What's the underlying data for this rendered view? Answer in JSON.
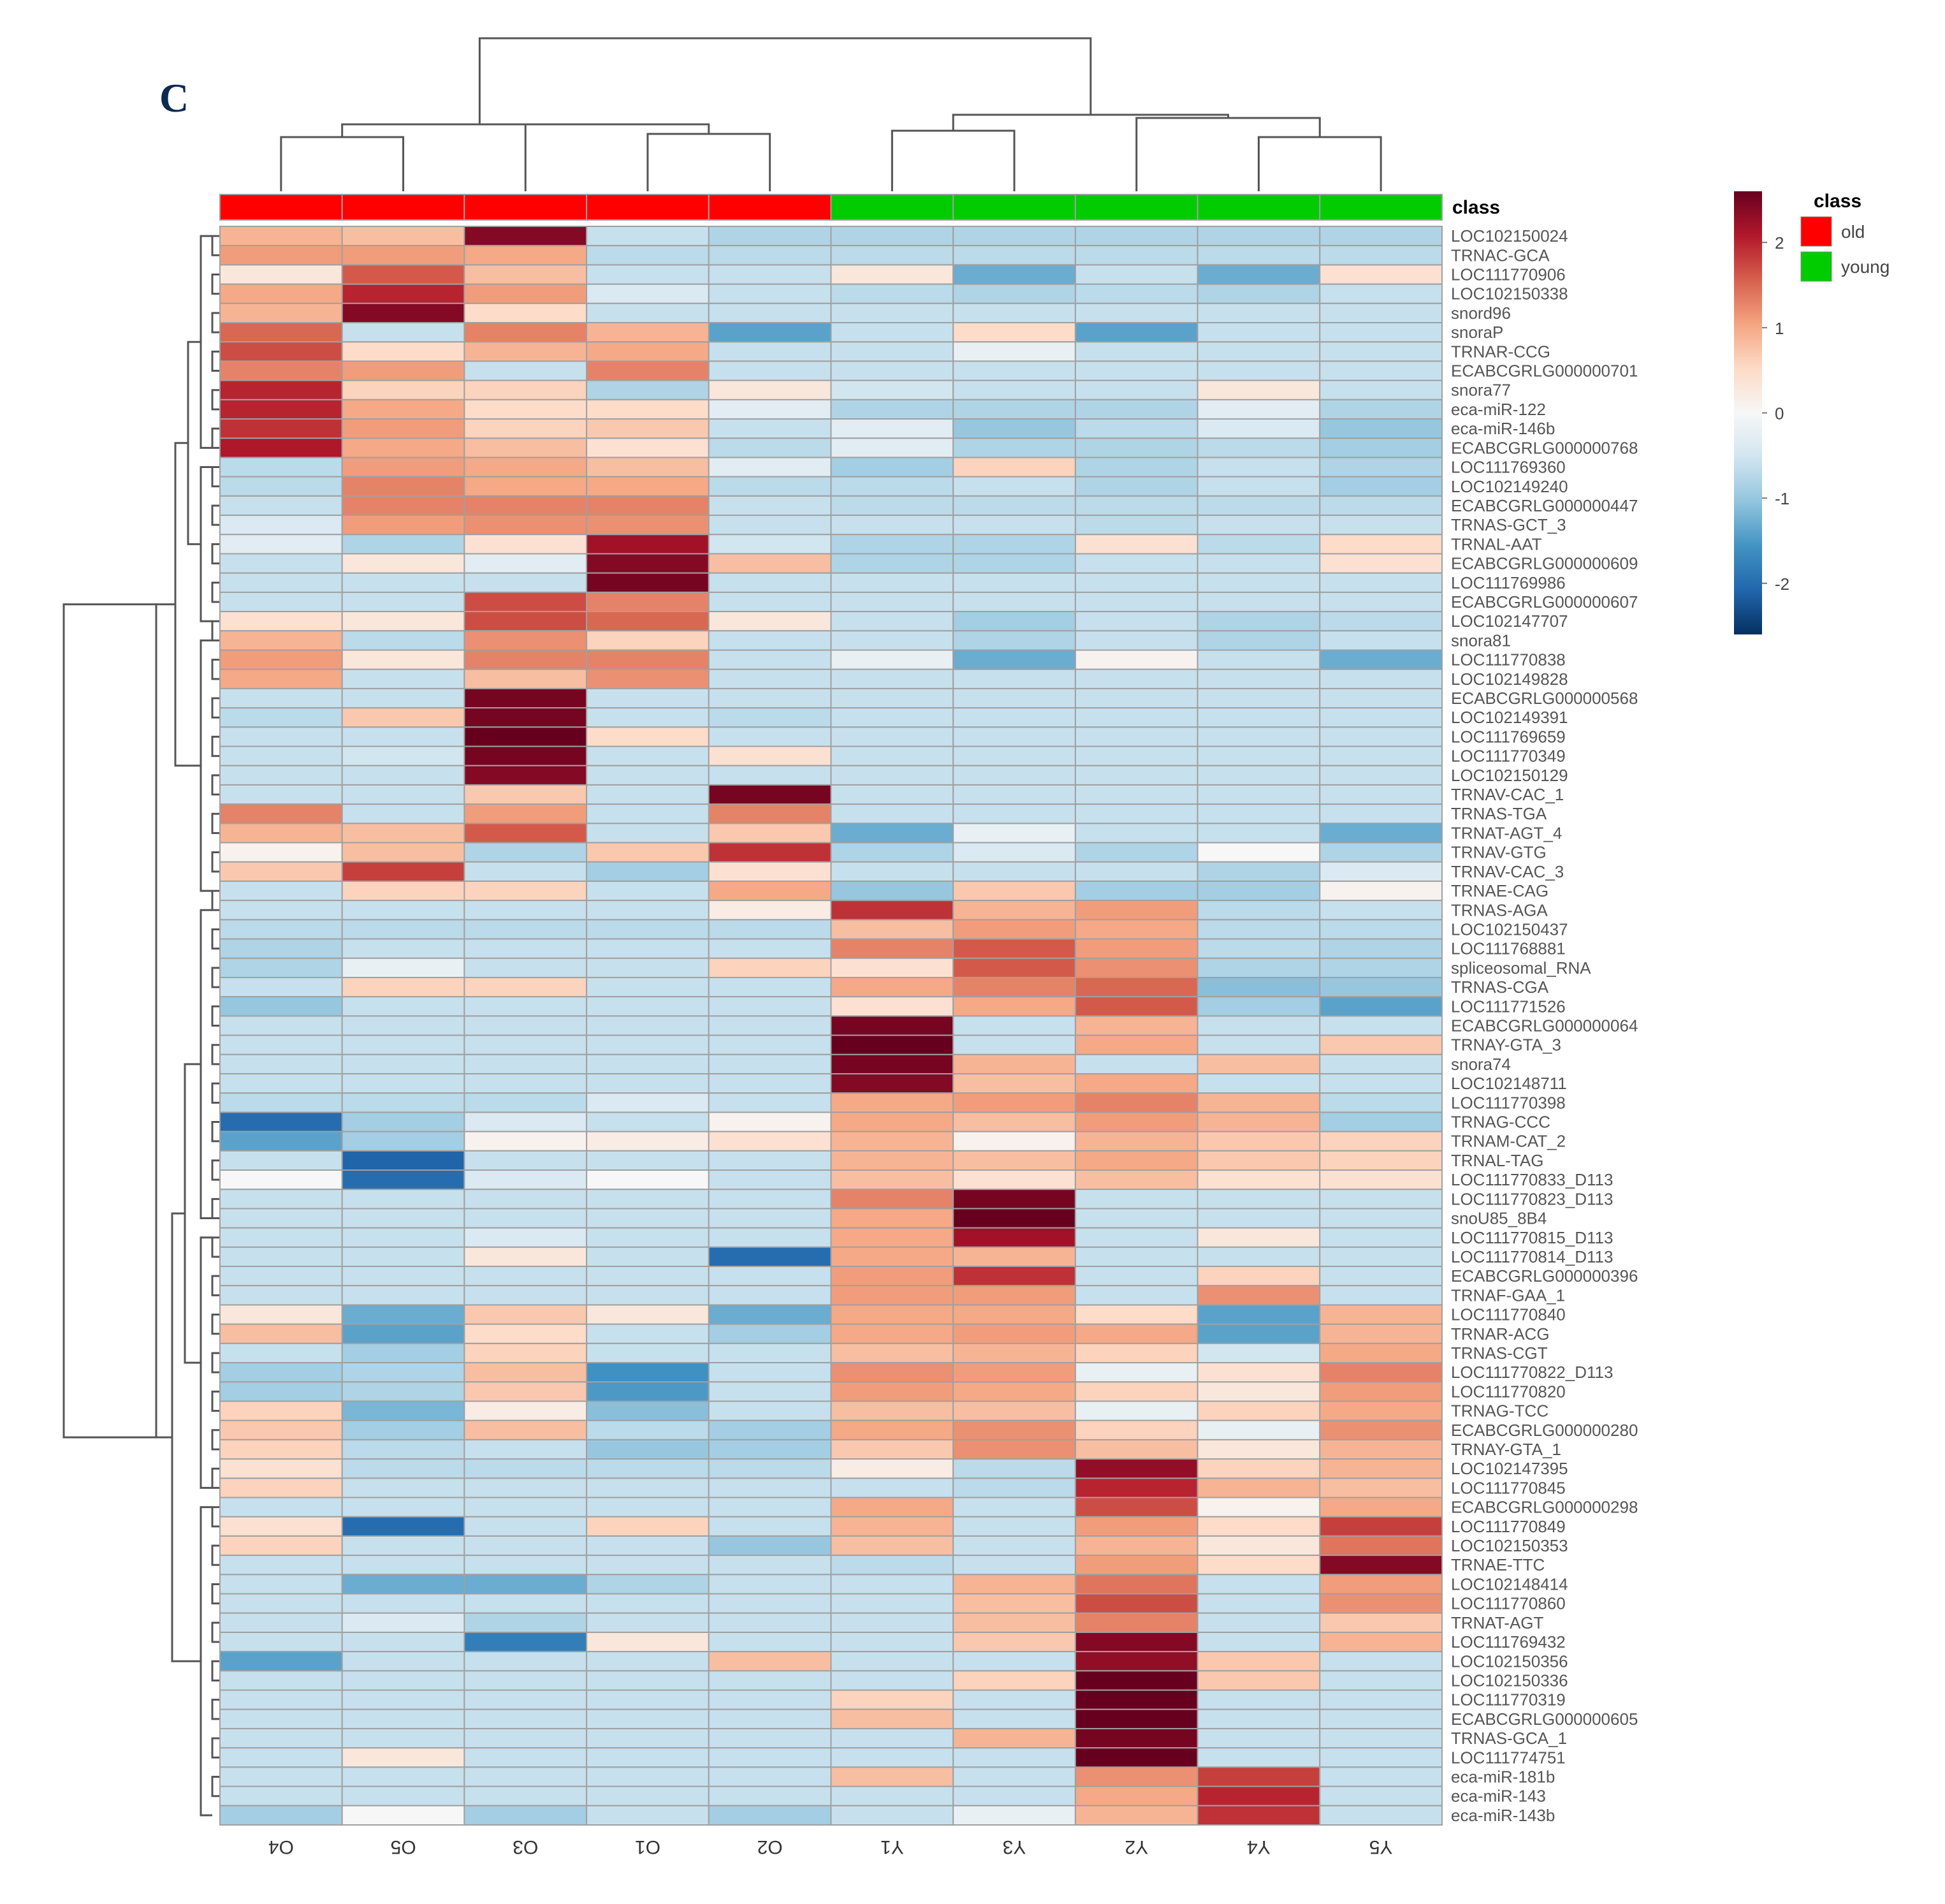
{
  "panel_label": "C",
  "chart_data": {
    "type": "heatmap",
    "title": "",
    "annotation_title": "class",
    "columns": [
      "O4",
      "O5",
      "O3",
      "O1",
      "O2",
      "Y1",
      "Y3",
      "Y2",
      "Y4",
      "Y5"
    ],
    "column_class": [
      "old",
      "old",
      "old",
      "old",
      "old",
      "young",
      "young",
      "young",
      "young",
      "young"
    ],
    "classes": [
      {
        "name": "old",
        "color": "#ff0000"
      },
      {
        "name": "young",
        "color": "#00cc00"
      }
    ],
    "color_scale": {
      "ticks": [
        2,
        1,
        0,
        -1,
        -2
      ],
      "range": [
        -2.6,
        2.6
      ],
      "stops": [
        "#053061",
        "#2166ac",
        "#4393c3",
        "#92c5de",
        "#d1e5f0",
        "#f7f7f7",
        "#fddbc7",
        "#f4a582",
        "#d6604d",
        "#b2182b",
        "#67001f"
      ]
    },
    "row_labels": [
      "LOC102150024",
      "TRNAC-GCA",
      "LOC111770906",
      "LOC102150338",
      "snord96",
      "snoraP",
      "TRNAR-CCG",
      "ECABCGRLG000000701",
      "snora77",
      "eca-miR-122",
      "eca-miR-146b",
      "ECABCGRLG000000768",
      "LOC111769360",
      "LOC102149240",
      "ECABCGRLG000000447",
      "TRNAS-GCT_3",
      "TRNAL-AAT",
      "ECABCGRLG000000609",
      "LOC111769986",
      "ECABCGRLG000000607",
      "LOC102147707",
      "snora81",
      "LOC111770838",
      "LOC102149828",
      "ECABCGRLG000000568",
      "LOC102149391",
      "LOC111769659",
      "LOC111770349",
      "LOC102150129",
      "TRNAV-CAC_1",
      "TRNAS-TGA",
      "TRNAT-AGT_4",
      "TRNAV-GTG",
      "TRNAV-CAC_3",
      "TRNAE-CAG",
      "TRNAS-AGA",
      "LOC102150437",
      "LOC111768881",
      "spliceosomal_RNA",
      "TRNAS-CGA",
      "LOC111771526",
      "ECABCGRLG000000064",
      "TRNAY-GTA_3",
      "snora74",
      "LOC102148711",
      "LOC111770398",
      "TRNAG-CCC",
      "TRNAM-CAT_2",
      "TRNAL-TAG",
      "LOC111770833_D113",
      "LOC111770823_D113",
      "snoU85_8B4",
      "LOC111770815_D113",
      "LOC111770814_D113",
      "ECABCGRLG000000396",
      "TRNAF-GAA_1",
      "LOC111770840",
      "TRNAR-ACG",
      "TRNAS-CGT",
      "LOC111770822_D113",
      "LOC111770820",
      "TRNAG-TCC",
      "ECABCGRLG000000280",
      "TRNAY-GTA_1",
      "LOC102147395",
      "LOC111770845",
      "ECABCGRLG000000298",
      "LOC111770849",
      "LOC102150353",
      "TRNAE-TTC",
      "LOC102148414",
      "LOC111770860",
      "TRNAT-AGT",
      "LOC111769432",
      "LOC102150356",
      "LOC102150336",
      "LOC111770319",
      "ECABCGRLG000000605",
      "TRNAS-GCA_1",
      "LOC111774751",
      "eca-miR-181b",
      "eca-miR-143",
      "eca-miR-143b"
    ],
    "values": [
      [
        0.9,
        0.8,
        2.4,
        -0.6,
        -0.8,
        -0.8,
        -0.8,
        -0.8,
        -0.8,
        -0.8
      ],
      [
        1.1,
        1.1,
        1.0,
        -0.7,
        -0.7,
        -0.7,
        -0.7,
        -0.7,
        -0.7,
        -0.7
      ],
      [
        0.3,
        1.6,
        0.8,
        -0.6,
        -0.6,
        0.3,
        -1.3,
        -0.6,
        -1.3,
        0.4
      ],
      [
        1.0,
        2.0,
        1.1,
        -0.4,
        -0.6,
        -0.7,
        -0.8,
        -0.7,
        -0.8,
        -0.6
      ],
      [
        0.9,
        2.4,
        0.5,
        -0.6,
        -0.6,
        -0.6,
        -0.6,
        -0.6,
        -0.6,
        -0.6
      ],
      [
        1.5,
        -0.6,
        1.3,
        0.9,
        -1.4,
        -0.6,
        0.5,
        -1.4,
        -0.6,
        -0.6
      ],
      [
        1.7,
        0.5,
        0.9,
        1.0,
        -0.6,
        -0.6,
        -0.2,
        -0.6,
        -0.6,
        -0.6
      ],
      [
        1.3,
        1.1,
        -0.6,
        1.3,
        -0.6,
        -0.6,
        -0.6,
        -0.6,
        -0.6,
        -0.6
      ],
      [
        2.0,
        0.6,
        0.6,
        -0.8,
        0.3,
        -0.5,
        -0.6,
        -0.6,
        0.3,
        -0.6
      ],
      [
        2.0,
        1.0,
        0.5,
        0.5,
        -0.3,
        -0.8,
        -0.8,
        -0.8,
        -0.3,
        -0.8
      ],
      [
        1.9,
        1.1,
        0.6,
        0.7,
        -0.6,
        -0.3,
        -1.0,
        -0.7,
        -0.4,
        -1.0
      ],
      [
        2.1,
        1.0,
        0.8,
        0.4,
        -0.7,
        -0.3,
        -0.8,
        -0.8,
        -0.7,
        -0.9
      ],
      [
        -0.7,
        1.1,
        1.0,
        0.8,
        -0.3,
        -0.9,
        0.6,
        -0.8,
        -0.6,
        -0.8
      ],
      [
        -0.7,
        1.3,
        1.0,
        1.0,
        -0.7,
        -0.7,
        -0.6,
        -0.8,
        -0.6,
        -0.9
      ],
      [
        -0.6,
        1.3,
        1.3,
        1.3,
        -0.6,
        -0.7,
        -0.7,
        -0.7,
        -0.7,
        -0.7
      ],
      [
        -0.4,
        1.1,
        1.2,
        1.2,
        -0.6,
        -0.6,
        -0.6,
        -0.7,
        -0.6,
        -0.6
      ],
      [
        -0.3,
        -0.8,
        0.4,
        2.2,
        -0.5,
        -0.8,
        -0.8,
        0.4,
        -0.7,
        0.5
      ],
      [
        -0.6,
        0.3,
        -0.3,
        2.4,
        0.8,
        -0.8,
        -0.8,
        -0.6,
        -0.6,
        0.4
      ],
      [
        -0.6,
        -0.6,
        -0.6,
        2.5,
        -0.6,
        -0.6,
        -0.6,
        -0.6,
        -0.6,
        -0.6
      ],
      [
        -0.6,
        -0.6,
        1.7,
        1.3,
        -0.6,
        -0.6,
        -0.6,
        -0.6,
        -0.6,
        -0.6
      ],
      [
        0.4,
        0.3,
        1.7,
        1.5,
        0.3,
        -0.6,
        -0.9,
        -0.6,
        -0.8,
        -0.7
      ],
      [
        0.9,
        -0.7,
        1.2,
        0.6,
        -0.6,
        -0.6,
        -0.8,
        -0.6,
        -0.8,
        -0.6
      ],
      [
        1.1,
        0.3,
        1.3,
        1.3,
        -0.6,
        -0.2,
        -1.3,
        0.1,
        -0.6,
        -1.3
      ],
      [
        1.0,
        -0.6,
        0.8,
        1.2,
        -0.6,
        -0.6,
        -0.6,
        -0.6,
        -0.6,
        -0.6
      ],
      [
        -0.6,
        -0.6,
        2.5,
        -0.6,
        -0.6,
        -0.6,
        -0.6,
        -0.6,
        -0.6,
        -0.6
      ],
      [
        -0.7,
        0.7,
        2.5,
        -0.6,
        -0.7,
        -0.6,
        -0.6,
        -0.6,
        -0.6,
        -0.6
      ],
      [
        -0.6,
        -0.6,
        2.6,
        0.5,
        -0.6,
        -0.6,
        -0.6,
        -0.6,
        -0.6,
        -0.6
      ],
      [
        -0.6,
        -0.5,
        2.5,
        -0.6,
        0.4,
        -0.6,
        -0.6,
        -0.6,
        -0.6,
        -0.6
      ],
      [
        -0.6,
        -0.6,
        2.4,
        -0.6,
        -0.6,
        -0.6,
        -0.6,
        -0.6,
        -0.6,
        -0.6
      ],
      [
        -0.6,
        -0.6,
        0.7,
        -0.6,
        2.5,
        -0.6,
        -0.6,
        -0.6,
        -0.6,
        -0.6
      ],
      [
        1.3,
        -0.6,
        1.1,
        -0.6,
        1.3,
        -0.6,
        -0.6,
        -0.6,
        -0.6,
        -0.6
      ],
      [
        0.9,
        0.8,
        1.6,
        -0.6,
        0.7,
        -1.3,
        -0.2,
        -0.6,
        -0.6,
        -1.3
      ],
      [
        0.1,
        0.8,
        -0.8,
        0.7,
        1.9,
        -0.8,
        -0.4,
        -0.8,
        0.0,
        -0.8
      ],
      [
        0.7,
        1.8,
        -0.6,
        -0.9,
        0.4,
        -0.6,
        -0.6,
        -0.6,
        -0.8,
        -0.4
      ],
      [
        -0.6,
        0.6,
        0.6,
        -0.6,
        1.0,
        -1.0,
        0.7,
        -0.9,
        -0.9,
        0.1
      ],
      [
        -0.6,
        -0.6,
        -0.6,
        -0.6,
        0.2,
        1.9,
        0.9,
        1.1,
        -0.7,
        -0.6
      ],
      [
        -0.7,
        -0.7,
        -0.7,
        -0.7,
        -0.7,
        0.8,
        1.1,
        1.0,
        -0.7,
        -0.7
      ],
      [
        -0.8,
        -0.6,
        -0.6,
        -0.6,
        -0.6,
        1.3,
        1.6,
        1.1,
        -0.7,
        -0.8
      ],
      [
        -0.8,
        -0.2,
        -0.6,
        -0.6,
        0.6,
        0.4,
        1.6,
        1.2,
        -0.8,
        -0.8
      ],
      [
        -0.6,
        0.6,
        0.6,
        -0.6,
        -0.6,
        1.0,
        1.3,
        1.5,
        -1.1,
        -1.0
      ],
      [
        -1.0,
        -0.6,
        -0.6,
        -0.6,
        -0.6,
        0.4,
        1.0,
        1.6,
        -0.9,
        -1.4
      ],
      [
        -0.6,
        -0.6,
        -0.6,
        -0.6,
        -0.6,
        2.5,
        -0.6,
        0.9,
        -0.6,
        -0.6
      ],
      [
        -0.6,
        -0.6,
        -0.6,
        -0.6,
        -0.6,
        2.6,
        -0.6,
        1.0,
        -0.6,
        0.7
      ],
      [
        -0.6,
        -0.6,
        -0.6,
        -0.6,
        -0.6,
        2.5,
        0.9,
        -0.6,
        0.8,
        -0.6
      ],
      [
        -0.6,
        -0.6,
        -0.6,
        -0.6,
        -0.6,
        2.4,
        0.8,
        1.0,
        -0.6,
        -0.6
      ],
      [
        -0.7,
        -0.7,
        -0.7,
        -0.4,
        -0.6,
        1.0,
        1.1,
        1.3,
        0.9,
        -0.7
      ],
      [
        -2.0,
        -0.9,
        -0.4,
        -0.6,
        0.1,
        1.0,
        0.8,
        1.1,
        0.9,
        -0.9
      ],
      [
        -1.4,
        -0.9,
        0.1,
        0.2,
        0.4,
        0.9,
        0.1,
        0.9,
        0.7,
        0.6
      ],
      [
        -0.6,
        -2.1,
        -0.6,
        -0.6,
        -0.6,
        0.9,
        0.8,
        1.0,
        0.7,
        0.6
      ],
      [
        0.0,
        -2.0,
        -0.4,
        0.0,
        -0.6,
        0.8,
        0.4,
        0.8,
        0.4,
        0.4
      ],
      [
        -0.6,
        -0.6,
        -0.6,
        -0.6,
        -0.6,
        1.3,
        2.5,
        -0.6,
        -0.6,
        -0.6
      ],
      [
        -0.6,
        -0.6,
        -0.6,
        -0.6,
        -0.6,
        1.0,
        2.6,
        -0.6,
        -0.6,
        -0.6
      ],
      [
        -0.6,
        -0.6,
        -0.4,
        -0.6,
        -0.6,
        1.0,
        2.2,
        -0.6,
        0.3,
        -0.6
      ],
      [
        -0.6,
        -0.6,
        0.3,
        -0.6,
        -2.0,
        1.0,
        0.9,
        -0.6,
        -0.6,
        -0.6
      ],
      [
        -0.6,
        -0.6,
        -0.6,
        -0.6,
        -0.6,
        1.1,
        1.9,
        -0.6,
        0.6,
        -0.6
      ],
      [
        -0.6,
        -0.6,
        -0.6,
        -0.6,
        -0.6,
        1.1,
        1.1,
        -0.6,
        1.2,
        -0.6
      ],
      [
        0.3,
        -1.3,
        0.7,
        0.3,
        -1.3,
        1.0,
        1.0,
        0.5,
        -1.4,
        0.9
      ],
      [
        0.8,
        -1.4,
        0.5,
        -0.6,
        -0.9,
        1.0,
        1.1,
        1.0,
        -1.4,
        0.9
      ],
      [
        -0.6,
        -0.9,
        0.6,
        -0.6,
        -0.6,
        0.8,
        0.9,
        0.6,
        -0.5,
        1.0
      ],
      [
        -0.9,
        -0.8,
        0.8,
        -1.6,
        -0.6,
        1.2,
        1.1,
        -0.2,
        0.4,
        1.3
      ],
      [
        -0.9,
        -0.8,
        0.7,
        -1.5,
        -0.6,
        1.1,
        1.0,
        0.6,
        0.3,
        1.1
      ],
      [
        0.6,
        -1.2,
        0.2,
        -1.1,
        -0.6,
        0.8,
        0.8,
        -0.2,
        0.6,
        1.0
      ],
      [
        0.7,
        -0.9,
        0.8,
        -0.7,
        -0.9,
        1.0,
        1.2,
        0.6,
        -0.2,
        1.2
      ],
      [
        0.6,
        -0.7,
        -0.6,
        -1.0,
        -0.9,
        0.7,
        1.2,
        0.8,
        0.3,
        0.9
      ],
      [
        0.4,
        -0.7,
        -0.7,
        -0.7,
        -0.7,
        0.2,
        -0.7,
        2.3,
        0.6,
        0.9
      ],
      [
        0.6,
        -0.6,
        -0.6,
        -0.6,
        -0.6,
        -0.6,
        -0.7,
        2.0,
        0.9,
        0.8
      ],
      [
        -0.6,
        -0.6,
        -0.6,
        -0.6,
        -0.6,
        1.0,
        -0.6,
        1.7,
        0.1,
        1.0
      ],
      [
        0.4,
        -2.0,
        -0.6,
        0.6,
        -0.6,
        0.9,
        -0.6,
        1.1,
        0.5,
        1.8
      ],
      [
        0.6,
        -0.6,
        -0.6,
        -0.6,
        -1.0,
        0.8,
        -0.6,
        0.9,
        0.3,
        1.4
      ],
      [
        -0.6,
        -0.6,
        -0.6,
        -0.6,
        -0.6,
        -0.7,
        -0.6,
        1.1,
        0.5,
        2.4
      ],
      [
        -0.6,
        -1.3,
        -1.3,
        -0.8,
        -0.6,
        -0.6,
        0.9,
        1.4,
        -0.6,
        1.1
      ],
      [
        -0.6,
        -0.6,
        -0.6,
        -0.6,
        -0.6,
        -0.6,
        0.8,
        1.7,
        -0.6,
        1.2
      ],
      [
        -0.6,
        -0.4,
        -0.8,
        -0.6,
        -0.6,
        -0.6,
        0.8,
        1.3,
        -0.6,
        0.7
      ],
      [
        -0.6,
        -0.6,
        -1.8,
        0.3,
        -0.6,
        -0.6,
        0.7,
        2.4,
        -0.6,
        0.9
      ],
      [
        -1.4,
        -0.6,
        -0.6,
        -0.6,
        0.8,
        -0.6,
        -0.6,
        2.3,
        0.7,
        -0.6
      ],
      [
        -0.6,
        -0.6,
        -0.6,
        -0.6,
        -0.6,
        -0.6,
        0.6,
        2.6,
        0.7,
        -0.6
      ],
      [
        -0.6,
        -0.6,
        -0.6,
        -0.6,
        -0.6,
        0.6,
        -0.6,
        2.6,
        -0.6,
        -0.6
      ],
      [
        -0.6,
        -0.6,
        -0.6,
        -0.6,
        -0.6,
        0.8,
        -0.6,
        2.6,
        -0.6,
        -0.6
      ],
      [
        -0.6,
        -0.6,
        -0.6,
        -0.6,
        -0.6,
        -0.6,
        0.9,
        2.5,
        -0.6,
        -0.6
      ],
      [
        -0.6,
        0.3,
        -0.6,
        -0.6,
        -0.6,
        -0.6,
        -0.6,
        2.6,
        -0.6,
        -0.6
      ],
      [
        -0.6,
        -0.6,
        -0.6,
        -0.6,
        -0.6,
        0.8,
        -0.6,
        1.2,
        1.8,
        -0.6
      ],
      [
        -0.6,
        -0.6,
        -0.6,
        -0.6,
        -0.6,
        -0.6,
        -0.6,
        1.0,
        2.0,
        -0.6
      ],
      [
        -0.9,
        0.0,
        -0.9,
        -0.6,
        -0.9,
        -0.6,
        -0.2,
        0.9,
        1.9,
        -0.6
      ]
    ]
  }
}
